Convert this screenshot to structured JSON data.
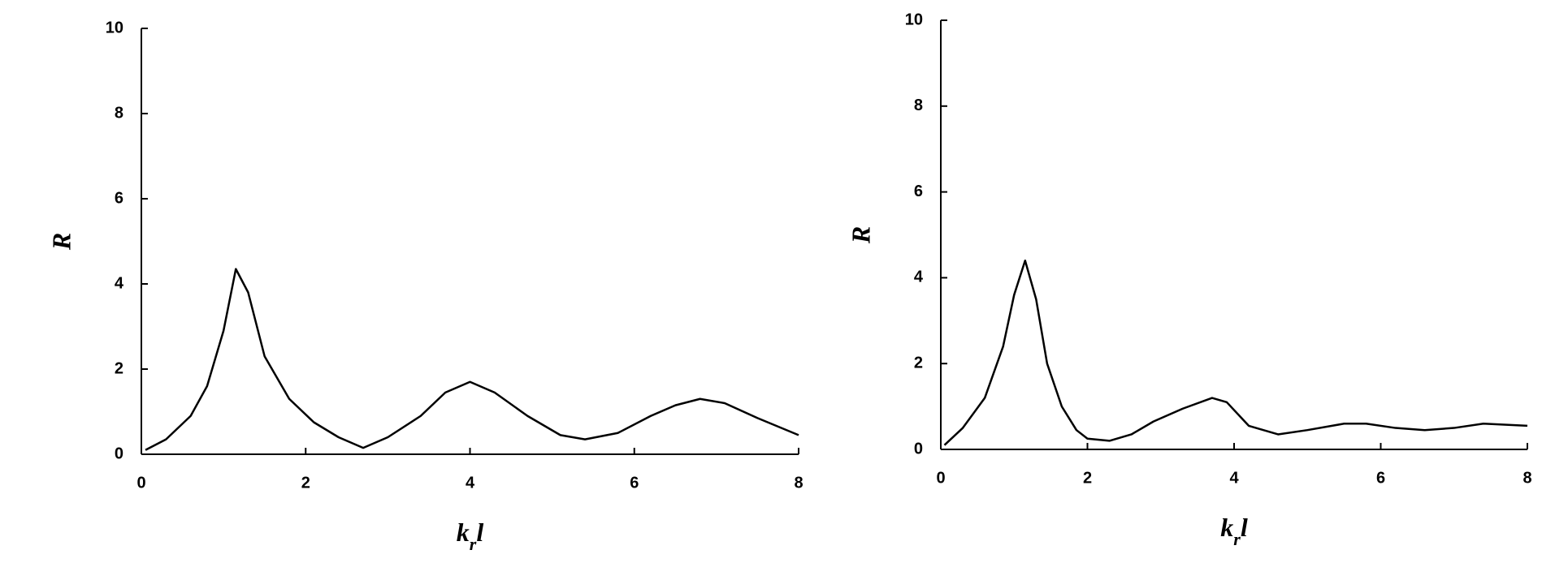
{
  "chart_data": [
    {
      "type": "line",
      "y_label": "R",
      "x_label_parts": [
        "k",
        "r",
        "l"
      ],
      "x": [
        0.05,
        0.3,
        0.6,
        0.8,
        1.0,
        1.15,
        1.3,
        1.5,
        1.8,
        2.1,
        2.4,
        2.7,
        3.0,
        3.4,
        3.7,
        4.0,
        4.3,
        4.7,
        5.1,
        5.4,
        5.8,
        6.2,
        6.5,
        6.8,
        7.1,
        7.5,
        8.0
      ],
      "series": [
        {
          "color": "#000000",
          "values": [
            0.1,
            0.35,
            0.9,
            1.6,
            2.9,
            4.35,
            3.8,
            2.3,
            1.3,
            0.75,
            0.4,
            0.15,
            0.4,
            0.9,
            1.45,
            1.7,
            1.45,
            0.9,
            0.45,
            0.35,
            0.5,
            0.9,
            1.15,
            1.3,
            1.2,
            0.85,
            0.45
          ]
        }
      ],
      "xlim": [
        0,
        8
      ],
      "xticks": [
        0,
        2,
        4,
        6,
        8
      ],
      "ylim": [
        0,
        10
      ],
      "yticks": [
        0,
        2,
        4,
        6,
        8,
        10
      ]
    },
    {
      "type": "line",
      "y_label": "R",
      "x_label_parts": [
        "k",
        "r",
        "l"
      ],
      "x": [
        0.05,
        0.3,
        0.6,
        0.85,
        1.0,
        1.15,
        1.3,
        1.45,
        1.65,
        1.85,
        2.0,
        2.3,
        2.6,
        2.9,
        3.3,
        3.7,
        3.9,
        4.2,
        4.6,
        5.0,
        5.5,
        5.8,
        6.2,
        6.6,
        7.0,
        7.4,
        8.0
      ],
      "series": [
        {
          "color": "#000000",
          "values": [
            0.1,
            0.5,
            1.2,
            2.4,
            3.6,
            4.4,
            3.5,
            2.0,
            1.0,
            0.45,
            0.25,
            0.2,
            0.35,
            0.65,
            0.95,
            1.2,
            1.1,
            0.55,
            0.35,
            0.45,
            0.6,
            0.6,
            0.5,
            0.45,
            0.5,
            0.6,
            0.55
          ]
        }
      ],
      "xlim": [
        0,
        8
      ],
      "xticks": [
        0,
        2,
        4,
        6,
        8
      ],
      "ylim": [
        0,
        10
      ],
      "yticks": [
        0,
        2,
        4,
        6,
        8,
        10
      ]
    }
  ]
}
